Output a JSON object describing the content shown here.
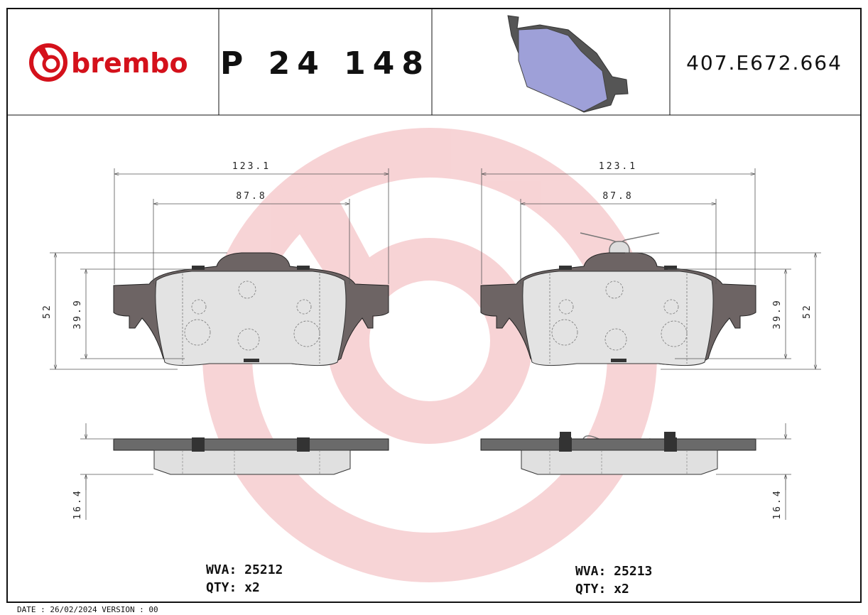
{
  "header": {
    "brand": "brembo",
    "part_number": "P 24 148",
    "code": "407.E672.664"
  },
  "left": {
    "dimensions": {
      "overall_width": "123.1",
      "inner_width": "87.8",
      "height": "52",
      "inner_height": "39.9",
      "thickness": "16.4"
    },
    "wva": "WVA: 25212",
    "qty": "QTY: x2"
  },
  "right": {
    "dimensions": {
      "overall_width": "123.1",
      "inner_width": "87.8",
      "height": "52",
      "inner_height": "39.9",
      "thickness": "16.4"
    },
    "wva": "WVA: 25213",
    "qty": "QTY: x2"
  },
  "footer": "DATE : 26/02/2024 VERSION : 00"
}
